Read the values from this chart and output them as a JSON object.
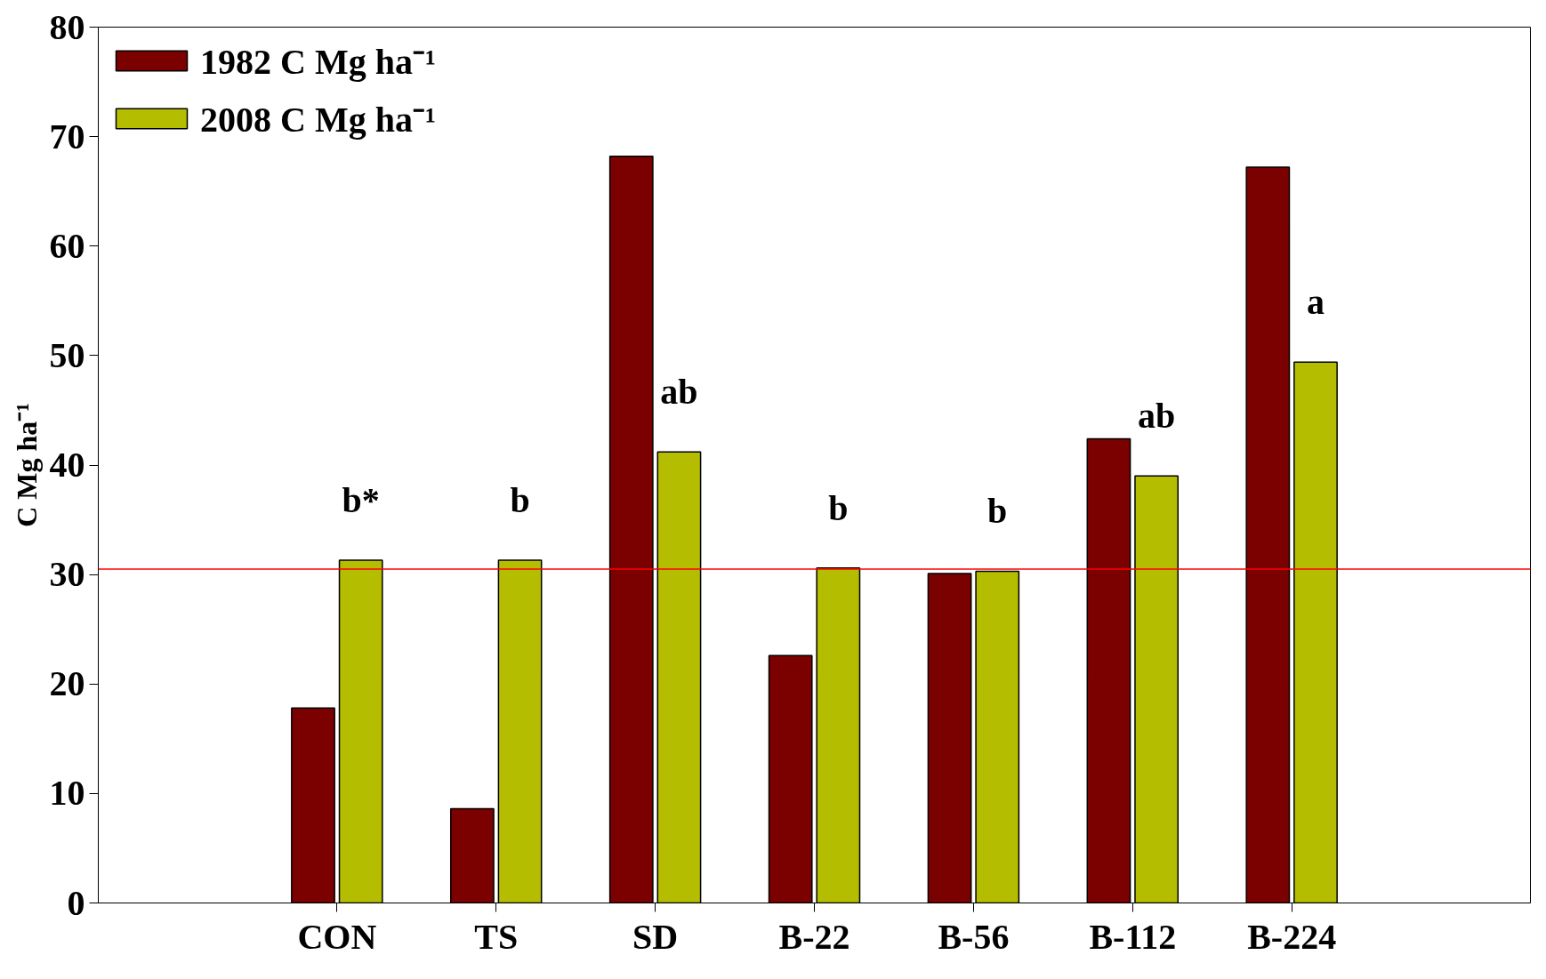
{
  "chart_data": {
    "type": "bar",
    "ylabel": "C Mg ha⁻¹",
    "categories": [
      null,
      "CON",
      "TS",
      "SD",
      "B-22",
      "B-56",
      "B-112",
      "B-224",
      null
    ],
    "series": [
      {
        "name": "1982 C Mg ha⁻¹",
        "color": "#7b0000",
        "values": [
          null,
          17.8,
          8.6,
          68.2,
          22.6,
          30.1,
          42.4,
          67.2,
          null
        ]
      },
      {
        "name": "2008 C Mg ha⁻¹",
        "color": "#b5bd00",
        "values": [
          null,
          31.3,
          31.3,
          41.2,
          30.6,
          30.3,
          39.0,
          49.4,
          null
        ]
      }
    ],
    "ylim": [
      0,
      80
    ],
    "yticks": [
      0,
      10,
      20,
      30,
      40,
      50,
      60,
      70,
      80
    ],
    "ref_lines": [
      {
        "axis": "y",
        "value": 30.5,
        "color": "#ff0000"
      }
    ],
    "annotations": [
      "b*",
      "b",
      "ab",
      "b",
      "b",
      "ab",
      "a"
    ],
    "legend": "top left",
    "grid": false
  }
}
